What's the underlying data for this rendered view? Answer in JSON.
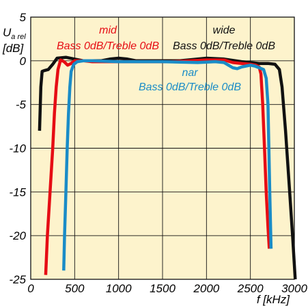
{
  "chart_data": {
    "type": "line",
    "y_axis_label": {
      "main": "U",
      "subscript": "a rel",
      "unit": "[dB]"
    },
    "x_axis_label": "f [kHz]",
    "x_ticks": [
      "0",
      "500",
      "1000",
      "1500",
      "2000",
      "2500",
      "3000"
    ],
    "y_ticks": [
      "5",
      "0",
      "-5",
      "-10",
      "-15",
      "-20",
      "-25"
    ],
    "xlim": [
      0,
      3000
    ],
    "ylim": [
      -25,
      5
    ],
    "x_tick_values": [
      0,
      500,
      1000,
      1500,
      2000,
      2500,
      3000
    ],
    "y_tick_values": [
      5,
      0,
      -5,
      -10,
      -15,
      -20,
      -25
    ],
    "grid": true,
    "background_color": "#fdf3cc",
    "grid_color": "#111111",
    "series": [
      {
        "name": "wide",
        "label_lines": [
          "wide",
          "Bass 0dB/Treble 0dB"
        ],
        "color": "#111111",
        "points": [
          [
            100,
            -8
          ],
          [
            115,
            -3
          ],
          [
            130,
            -1.2
          ],
          [
            160,
            -1.1
          ],
          [
            200,
            -1
          ],
          [
            250,
            -0.4
          ],
          [
            300,
            0.3
          ],
          [
            400,
            0.4
          ],
          [
            500,
            0.2
          ],
          [
            600,
            0
          ],
          [
            800,
            0
          ],
          [
            900,
            0.2
          ],
          [
            1000,
            0.3
          ],
          [
            1100,
            0.2
          ],
          [
            1200,
            0
          ],
          [
            1400,
            0
          ],
          [
            1700,
            0
          ],
          [
            2000,
            0.3
          ],
          [
            2200,
            0.2
          ],
          [
            2400,
            -0.1
          ],
          [
            2500,
            -0.2
          ],
          [
            2600,
            -0.3
          ],
          [
            2700,
            -0.3
          ],
          [
            2780,
            -0.4
          ],
          [
            2830,
            -1
          ],
          [
            2860,
            -3
          ],
          [
            2900,
            -8
          ],
          [
            2940,
            -14
          ],
          [
            2980,
            -20
          ],
          [
            3010,
            -25
          ]
        ]
      },
      {
        "name": "mid",
        "label_lines": [
          "mid",
          "Bass 0dB/Treble 0dB"
        ],
        "color": "#e60d14",
        "points": [
          [
            170,
            -24.5
          ],
          [
            190,
            -20
          ],
          [
            220,
            -15
          ],
          [
            250,
            -10
          ],
          [
            270,
            -6
          ],
          [
            290,
            -3
          ],
          [
            310,
            -1
          ],
          [
            340,
            0.1
          ],
          [
            380,
            -0.1
          ],
          [
            420,
            -0.5
          ],
          [
            460,
            -0.3
          ],
          [
            500,
            0
          ],
          [
            600,
            0
          ],
          [
            700,
            -0.1
          ],
          [
            900,
            -0.1
          ],
          [
            1200,
            -0.1
          ],
          [
            1600,
            -0.1
          ],
          [
            2000,
            0.1
          ],
          [
            2200,
            0.1
          ],
          [
            2300,
            -0.2
          ],
          [
            2400,
            -0.3
          ],
          [
            2500,
            -0.4
          ],
          [
            2560,
            -0.5
          ],
          [
            2600,
            -0.7
          ],
          [
            2620,
            -1.5
          ],
          [
            2640,
            -5
          ],
          [
            2660,
            -10
          ],
          [
            2680,
            -15
          ],
          [
            2700,
            -19
          ],
          [
            2715,
            -21.5
          ]
        ]
      },
      {
        "name": "nar",
        "label_lines": [
          "nar",
          "Bass 0dB/Treble 0dB"
        ],
        "color": "#1a8cc7",
        "points": [
          [
            375,
            -24
          ],
          [
            385,
            -20
          ],
          [
            400,
            -15
          ],
          [
            415,
            -10
          ],
          [
            430,
            -6
          ],
          [
            445,
            -3
          ],
          [
            460,
            -1.2
          ],
          [
            490,
            -0.4
          ],
          [
            530,
            -0.1
          ],
          [
            600,
            0
          ],
          [
            700,
            0
          ],
          [
            1000,
            -0.1
          ],
          [
            1500,
            -0.1
          ],
          [
            1900,
            -0.2
          ],
          [
            2100,
            -0.1
          ],
          [
            2200,
            -0.2
          ],
          [
            2250,
            -0.5
          ],
          [
            2300,
            -0.8
          ],
          [
            2350,
            -0.9
          ],
          [
            2400,
            -0.7
          ],
          [
            2450,
            -0.6
          ],
          [
            2500,
            -0.5
          ],
          [
            2550,
            -0.6
          ],
          [
            2600,
            -0.8
          ],
          [
            2650,
            -1
          ],
          [
            2680,
            -2
          ],
          [
            2700,
            -5
          ],
          [
            2710,
            -10
          ],
          [
            2720,
            -15
          ],
          [
            2735,
            -21.5
          ]
        ]
      }
    ]
  }
}
